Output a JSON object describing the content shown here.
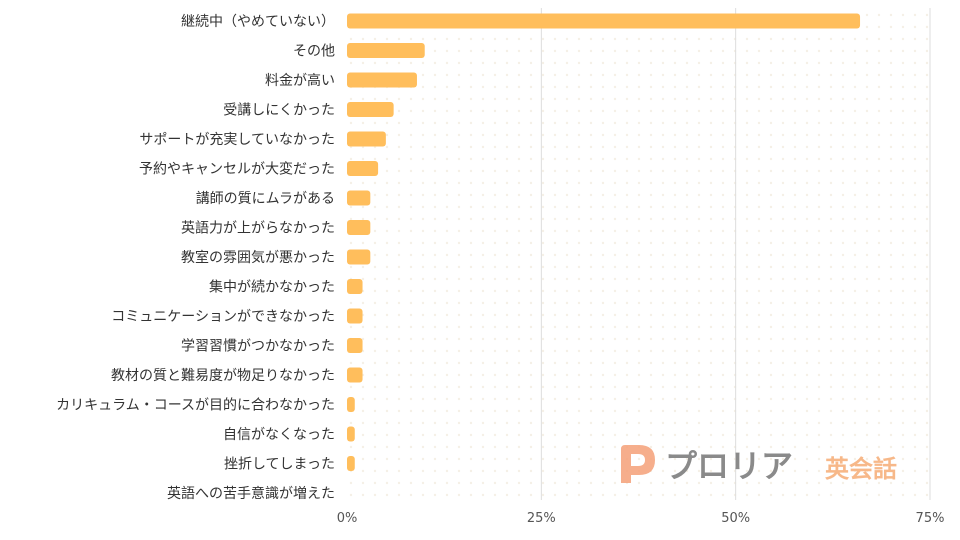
{
  "chart_data": {
    "type": "bar",
    "orientation": "horizontal",
    "categories": [
      "継続中（やめていない）",
      "その他",
      "料金が高い",
      "受講しにくかった",
      "サポートが充実していなかった",
      "予約やキャンセルが大変だった",
      "講師の質にムラがある",
      "英語力が上がらなかった",
      "教室の雰囲気が悪かった",
      "集中が続かなかった",
      "コミュニケーションができなかった",
      "学習習慣がつかなかった",
      "教材の質と難易度が物足りなかった",
      "カリキュラム・コースが目的に合わなかった",
      "自信がなくなった",
      "挫折してしまった",
      "英語への苦手意識が増えた"
    ],
    "values": [
      66,
      10,
      9,
      6,
      5,
      4,
      3,
      3,
      3,
      2,
      2,
      2,
      2,
      1,
      1,
      1,
      0
    ],
    "xlim": [
      0,
      75
    ],
    "ticks": [
      0,
      25,
      50,
      75
    ],
    "tick_labels": [
      "0%",
      "25%",
      "50%",
      "75%"
    ],
    "grid": true,
    "bar_color": "#FFBE5C",
    "grid_color": "#DDDDDD"
  },
  "logo": {
    "brand": "プロリア",
    "suffix": "英会話",
    "mark_color": "#F5A078",
    "brand_color": "#8A8A8A",
    "suffix_color": "#F7B889"
  }
}
